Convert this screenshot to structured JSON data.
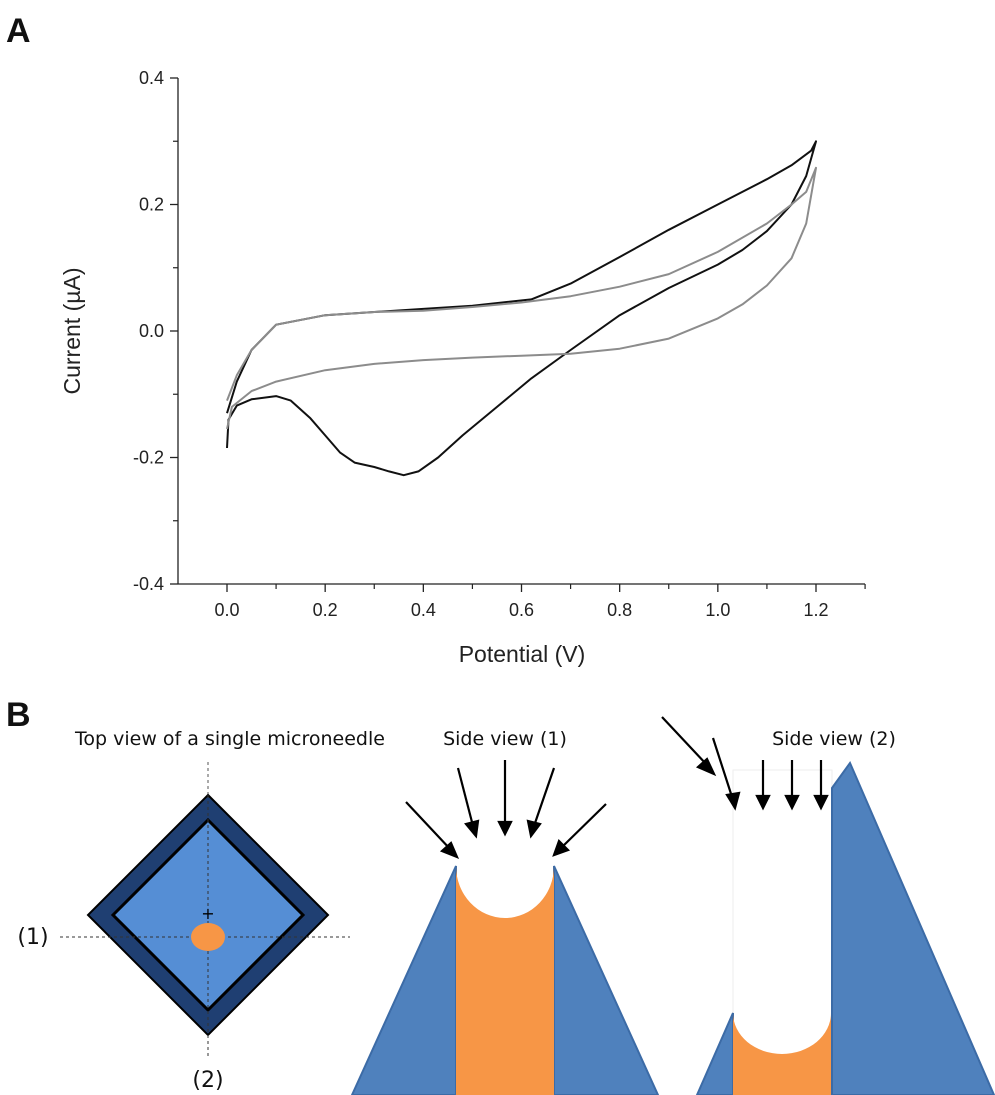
{
  "panel_a": {
    "label": "A"
  },
  "panel_b": {
    "label": "B",
    "top_view_caption": "Top view of a single microneedle",
    "side_view_1_caption": "Side view (1)",
    "side_view_2_caption": "Side view (2)",
    "section_label_1": "(1)",
    "section_label_2": "(2)",
    "center_mark": "+",
    "colors": {
      "needle_blue": "#4f81bd",
      "diamond_outer": "#1f3f72",
      "diamond_inner": "#558ed5",
      "electrode_orange": "#f79646",
      "arrow": "#000000"
    }
  },
  "chart_data": {
    "type": "line",
    "title": "",
    "xlabel": "Potential (V)",
    "ylabel": "Current (µA)",
    "xlim": [
      -0.1,
      1.3
    ],
    "ylim": [
      -0.4,
      0.4
    ],
    "x_ticks": [
      "0.0",
      "0.2",
      "0.4",
      "0.6",
      "0.8",
      "1.0",
      "1.2"
    ],
    "y_ticks": [
      "-0.4",
      "-0.2",
      "0.0",
      "0.2",
      "0.4"
    ],
    "grid": false,
    "series": [
      {
        "color": "#111111",
        "points": [
          [
            0.0,
            -0.185
          ],
          [
            0.003,
            -0.14
          ],
          [
            0.02,
            -0.118
          ],
          [
            0.05,
            -0.108
          ],
          [
            0.1,
            -0.103
          ],
          [
            0.13,
            -0.11
          ],
          [
            0.17,
            -0.138
          ],
          [
            0.2,
            -0.165
          ],
          [
            0.23,
            -0.192
          ],
          [
            0.26,
            -0.208
          ],
          [
            0.3,
            -0.215
          ],
          [
            0.33,
            -0.222
          ],
          [
            0.36,
            -0.228
          ],
          [
            0.39,
            -0.222
          ],
          [
            0.43,
            -0.2
          ],
          [
            0.48,
            -0.165
          ],
          [
            0.55,
            -0.12
          ],
          [
            0.62,
            -0.075
          ],
          [
            0.7,
            -0.03
          ],
          [
            0.8,
            0.025
          ],
          [
            0.9,
            0.068
          ],
          [
            1.0,
            0.105
          ],
          [
            1.05,
            0.128
          ],
          [
            1.1,
            0.158
          ],
          [
            1.15,
            0.2
          ],
          [
            1.18,
            0.245
          ],
          [
            1.2,
            0.3
          ],
          [
            1.19,
            0.285
          ],
          [
            1.15,
            0.262
          ],
          [
            1.1,
            0.24
          ],
          [
            1.0,
            0.2
          ],
          [
            0.9,
            0.16
          ],
          [
            0.8,
            0.117
          ],
          [
            0.7,
            0.075
          ],
          [
            0.62,
            0.05
          ],
          [
            0.5,
            0.04
          ],
          [
            0.4,
            0.035
          ],
          [
            0.3,
            0.03
          ],
          [
            0.2,
            0.025
          ],
          [
            0.1,
            0.01
          ],
          [
            0.05,
            -0.03
          ],
          [
            0.02,
            -0.08
          ],
          [
            0.0,
            -0.13
          ]
        ]
      },
      {
        "color": "#8c8c8c",
        "points": [
          [
            0.0,
            -0.155
          ],
          [
            0.01,
            -0.12
          ],
          [
            0.05,
            -0.095
          ],
          [
            0.1,
            -0.08
          ],
          [
            0.2,
            -0.062
          ],
          [
            0.3,
            -0.052
          ],
          [
            0.4,
            -0.046
          ],
          [
            0.5,
            -0.042
          ],
          [
            0.6,
            -0.039
          ],
          [
            0.7,
            -0.036
          ],
          [
            0.8,
            -0.028
          ],
          [
            0.9,
            -0.012
          ],
          [
            1.0,
            0.02
          ],
          [
            1.05,
            0.042
          ],
          [
            1.1,
            0.072
          ],
          [
            1.15,
            0.115
          ],
          [
            1.18,
            0.17
          ],
          [
            1.2,
            0.258
          ],
          [
            1.18,
            0.22
          ],
          [
            1.15,
            0.2
          ],
          [
            1.1,
            0.17
          ],
          [
            1.0,
            0.125
          ],
          [
            0.9,
            0.09
          ],
          [
            0.8,
            0.07
          ],
          [
            0.7,
            0.055
          ],
          [
            0.6,
            0.045
          ],
          [
            0.5,
            0.038
          ],
          [
            0.4,
            0.032
          ],
          [
            0.3,
            0.03
          ],
          [
            0.2,
            0.025
          ],
          [
            0.1,
            0.01
          ],
          [
            0.05,
            -0.03
          ],
          [
            0.02,
            -0.07
          ],
          [
            0.0,
            -0.11
          ]
        ]
      }
    ]
  }
}
